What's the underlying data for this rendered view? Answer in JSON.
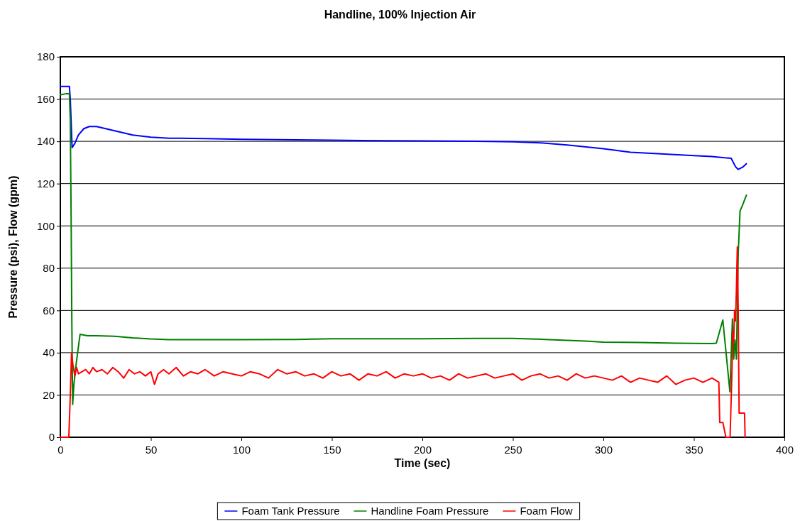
{
  "chart_data": {
    "type": "line",
    "title": "Handline, 100% Injection Air",
    "xlabel": "Time (sec)",
    "ylabel": "Pressure (psi), Flow (gpm)",
    "xlim": [
      0,
      400
    ],
    "ylim": [
      0,
      180
    ],
    "xticks": [
      0,
      50,
      100,
      150,
      200,
      250,
      300,
      350,
      400
    ],
    "yticks": [
      0,
      20,
      40,
      60,
      80,
      100,
      120,
      140,
      160,
      180
    ],
    "grid": "y",
    "legend": "bottom",
    "marker": "none",
    "line_style": "solid",
    "series": [
      {
        "name": "Foam Tank Pressure",
        "color": "#0000ff",
        "x": [
          0,
          5,
          5.5,
          6.5,
          8,
          10,
          13,
          16,
          20,
          25,
          30,
          40,
          50,
          60,
          80,
          100,
          120,
          150,
          180,
          200,
          230,
          250,
          265,
          280,
          300,
          315,
          330,
          350,
          360,
          367,
          370.6,
          373,
          374.5,
          377,
          379
        ],
        "values": [
          166,
          166,
          160,
          137,
          139,
          143,
          146,
          147,
          147,
          146,
          145,
          143,
          142,
          141.5,
          141.3,
          141,
          140.8,
          140.5,
          140.3,
          140.2,
          140,
          139.8,
          139.3,
          138.3,
          136.5,
          134.8,
          134.2,
          133.2,
          132.8,
          132.2,
          132,
          128,
          126.7,
          127.8,
          129.4
        ]
      },
      {
        "name": "Handline Foam Pressure",
        "color": "#008000",
        "x": [
          0,
          3,
          5,
          5.5,
          6,
          6.3,
          6.8,
          7.5,
          8.5,
          9.4,
          10.9,
          15,
          20,
          30,
          40,
          50,
          60,
          100,
          130,
          150,
          200,
          230,
          250,
          270,
          290,
          300,
          320,
          340,
          360,
          362.4,
          366,
          369.9,
          371.3,
          372,
          372.7,
          373.5,
          374.5,
          375.5,
          377,
          379
        ],
        "values": [
          162,
          162.5,
          162.5,
          150,
          100,
          60,
          15.5,
          25,
          33,
          39,
          48.7,
          48,
          48,
          47.8,
          47,
          46.5,
          46.2,
          46.2,
          46.3,
          46.6,
          46.6,
          46.8,
          46.8,
          46.2,
          45.5,
          45,
          44.8,
          44.5,
          44.3,
          44.5,
          55.5,
          21.5,
          56,
          37,
          46,
          37,
          87,
          107,
          110,
          114.5
        ]
      },
      {
        "name": "Foam Flow",
        "color": "#ff0000",
        "x": [
          0,
          4.7,
          5.5,
          6.2,
          7,
          8,
          9,
          10,
          12,
          14,
          16,
          18,
          20,
          23,
          26,
          29,
          32,
          35,
          38,
          41,
          44,
          47,
          50,
          52,
          54,
          57,
          60,
          64,
          68,
          72,
          76,
          80,
          85,
          90,
          95,
          100,
          105,
          110,
          115,
          120,
          125,
          130,
          135,
          140,
          145,
          150,
          155,
          160,
          165,
          170,
          175,
          180,
          185,
          190,
          195,
          200,
          205,
          210,
          215,
          220,
          225,
          230,
          235,
          240,
          245,
          250,
          255,
          260,
          265,
          270,
          275,
          280,
          285,
          290,
          295,
          300,
          305,
          310,
          315,
          320,
          325,
          330,
          335,
          340,
          345,
          350,
          355,
          360,
          362,
          363.8,
          364.3,
          366,
          367.7,
          370,
          371,
          371.5,
          372,
          372.5,
          373,
          373.5,
          374,
          374.5,
          375,
          375.3,
          378,
          378.3
        ],
        "values": [
          0,
          0,
          20,
          40,
          34,
          29,
          33,
          30,
          31,
          32,
          30,
          33,
          31,
          32,
          30,
          33,
          31,
          28,
          32,
          30,
          31,
          29,
          31,
          25,
          30,
          32,
          30,
          33,
          29,
          31,
          30,
          32,
          29,
          31,
          30,
          29,
          31,
          30,
          28,
          32,
          30,
          31,
          29,
          30,
          28,
          31,
          29,
          30,
          27,
          30,
          29,
          31,
          28,
          30,
          29,
          30,
          28,
          29,
          27,
          30,
          28,
          29,
          30,
          28,
          29,
          30,
          27,
          29,
          30,
          28,
          29,
          27,
          30,
          28,
          29,
          28,
          27,
          29,
          26,
          28,
          27,
          26,
          29,
          25,
          27,
          28,
          26,
          28,
          27,
          26,
          7,
          7,
          0,
          0,
          30,
          50,
          45,
          60,
          55,
          70,
          90,
          60,
          11.4,
          11.4,
          11.4,
          0
        ]
      }
    ]
  }
}
